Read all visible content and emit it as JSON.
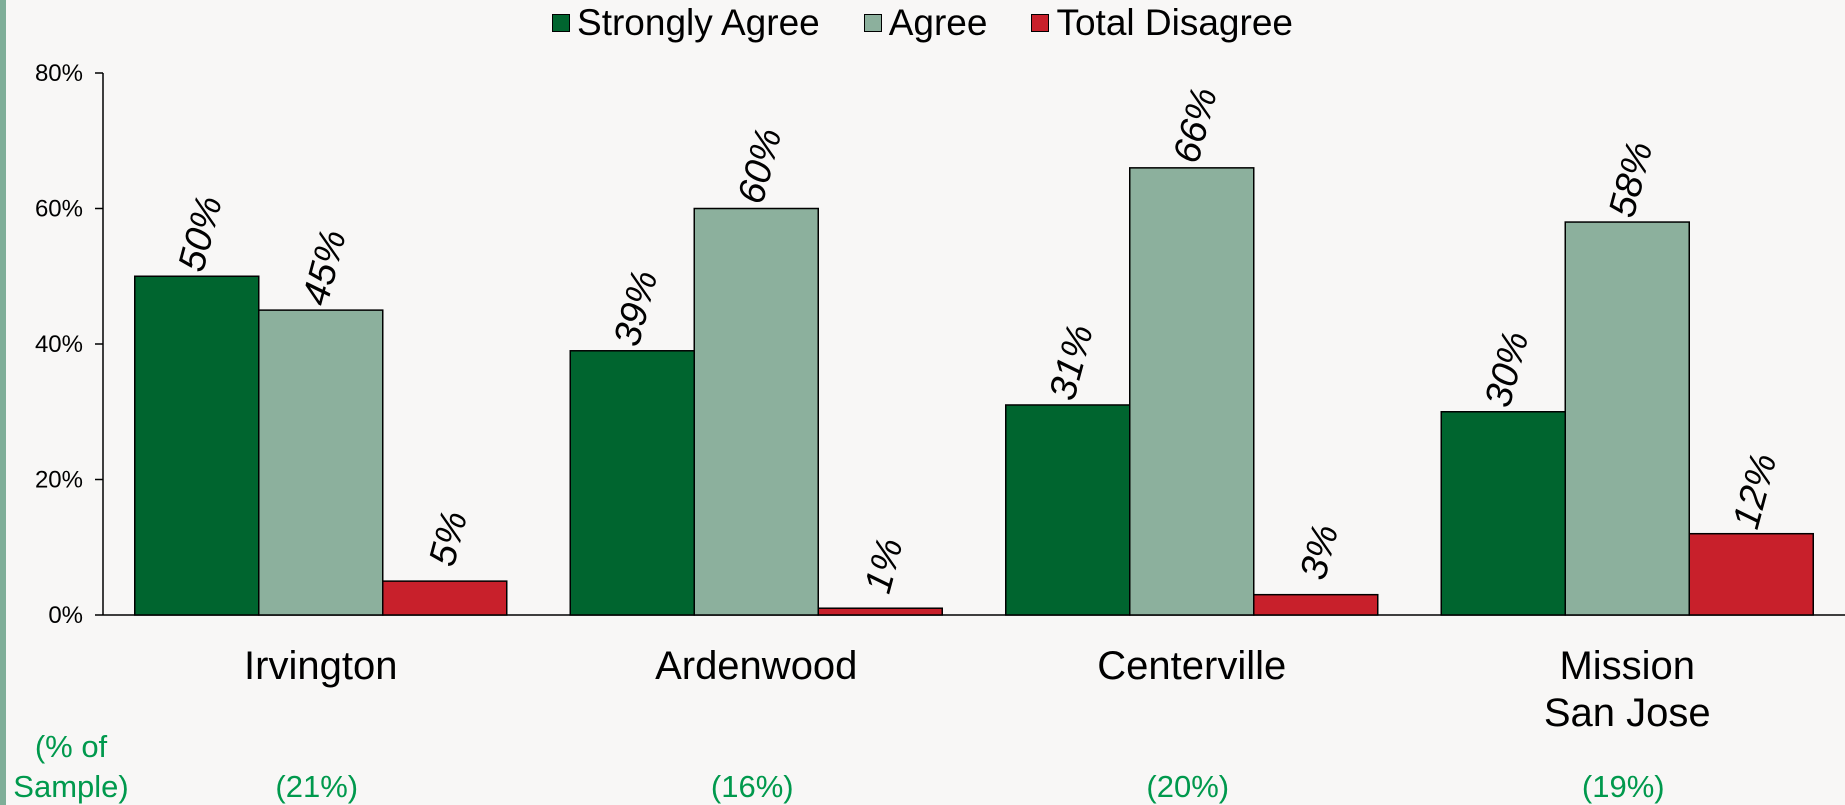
{
  "chart_data": {
    "type": "bar",
    "categories": [
      "Irvington",
      "Ardenwood",
      "Centerville",
      "Mission\nSan Jose"
    ],
    "series": [
      {
        "name": "Strongly Agree",
        "values": [
          50,
          39,
          31,
          30
        ],
        "color": "#00652f",
        "labels": [
          "50%",
          "39%",
          "31%",
          "30%"
        ]
      },
      {
        "name": "Agree",
        "values": [
          45,
          60,
          66,
          58
        ],
        "color": "#8cb09d",
        "labels": [
          "45%",
          "60%",
          "66%",
          "58%"
        ]
      },
      {
        "name": "Total Disagree",
        "values": [
          5,
          1,
          3,
          12
        ],
        "color": "#c8202b",
        "labels": [
          "5%",
          "1%",
          "3%",
          "12%"
        ]
      }
    ],
    "ylim": [
      0,
      80
    ],
    "yticks": [
      "0%",
      "20%",
      "40%",
      "60%",
      "80%"
    ],
    "sample_label": "(% of\nSample)",
    "sample_values": [
      "(21%)",
      "(16%)",
      "(20%)",
      "(19%)"
    ],
    "legend": "top",
    "grid": false
  },
  "colors": {
    "sample_text": "#00994d",
    "left_edge": "#7fae98"
  }
}
